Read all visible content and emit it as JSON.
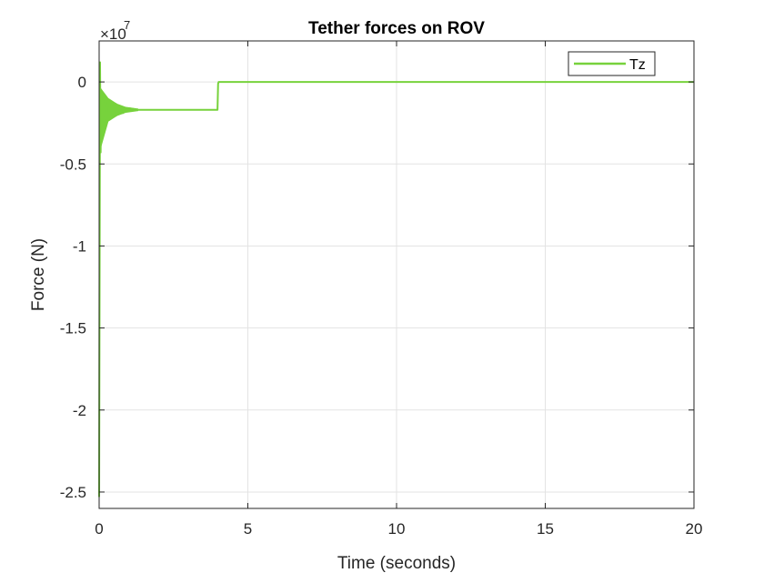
{
  "chart_data": {
    "type": "line",
    "title": "Tether forces on ROV",
    "xlabel": "Time (seconds)",
    "ylabel": "Force (N)",
    "xlim": [
      0,
      20
    ],
    "ylim": [
      -26000000.0,
      2500000.0
    ],
    "x_ticks": [
      0,
      5,
      10,
      15,
      20
    ],
    "x_tick_labels": [
      "0",
      "5",
      "10",
      "15",
      "20"
    ],
    "y_ticks": [
      0,
      -5000000,
      -10000000,
      -15000000,
      -20000000,
      -25000000
    ],
    "y_tick_labels": [
      "0",
      "-0.5",
      "-1",
      "-1.5",
      "-2",
      "-2.5"
    ],
    "y_exponent_base": "×10",
    "y_exponent_power": "7",
    "grid": true,
    "legend_position": "top-right",
    "series": [
      {
        "name": "Tz",
        "color": "#77d23c",
        "x": [
          0,
          0.03,
          0.05,
          0.07,
          0.1,
          0.14,
          0.2,
          0.3,
          0.45,
          0.6,
          0.8,
          1.0,
          1.3,
          2.0,
          3.0,
          3.98,
          4.0,
          4.02,
          6.0,
          10.0,
          15.0,
          20.0
        ],
        "y": [
          -25300000,
          1200000,
          -4300000,
          -800000,
          -2700000,
          -1000000,
          -2400000,
          -1200000,
          -2100000,
          -1400000,
          -1900000,
          -1600000,
          -1700000,
          -1700000,
          -1700000,
          -1700000,
          -100000,
          0,
          0,
          0,
          0,
          0
        ],
        "oscillation_envelope": {
          "t": [
            0.05,
            0.3,
            0.6,
            0.9,
            1.3
          ],
          "upper": [
            -400000,
            -1000000,
            -1350000,
            -1550000,
            -1650000
          ],
          "lower": [
            -4000000,
            -2400000,
            -2050000,
            -1850000,
            -1750000
          ]
        }
      }
    ]
  }
}
